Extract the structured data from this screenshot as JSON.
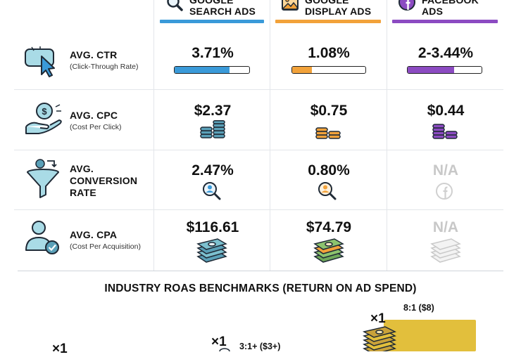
{
  "columns": [
    {
      "line1": "GOOGLE",
      "line2": "SEARCH ADS",
      "color": "#3a9ad9",
      "icon": "magnifier-icon"
    },
    {
      "line1": "GOOGLE",
      "line2": "DISPLAY ADS",
      "color": "#f2a23a",
      "icon": "image-icon"
    },
    {
      "line1": "FACEBOOK",
      "line2": "ADS",
      "color": "#8c4bc2",
      "icon": "facebook-icon"
    }
  ],
  "rows": [
    {
      "title": [
        "AVG. CTR"
      ],
      "subtitle": "(Click-Through Rate)",
      "icon": "cursor-click-icon",
      "values": [
        "3.71%",
        "1.08%",
        "2-3.44%"
      ]
    },
    {
      "title": [
        "AVG. CPC"
      ],
      "subtitle": "(Cost Per Click)",
      "icon": "hand-coin-icon",
      "values": [
        "$2.37",
        "$0.75",
        "$0.44"
      ]
    },
    {
      "title": [
        "AVG.",
        "CONVERSION",
        "RATE"
      ],
      "subtitle": "",
      "icon": "funnel-icon",
      "values": [
        "2.47%",
        "0.80%",
        "N/A"
      ]
    },
    {
      "title": [
        "AVG. CPA"
      ],
      "subtitle": "(Cost Per Acquisition)",
      "icon": "user-check-icon",
      "values": [
        "$116.61",
        "$74.79",
        "N/A"
      ]
    }
  ],
  "ctr_progress": [
    0.74,
    0.27,
    0.63
  ],
  "roas": {
    "title": "INDUSTRY ROAS BENCHMARKS (RETURN ON AD SPEND)",
    "items": [
      {
        "multiplier": "×1",
        "label": ""
      },
      {
        "multiplier": "×1",
        "label": "3:1+ ($3+)"
      },
      {
        "multiplier": "×1",
        "label": "8:1 ($8)"
      }
    ],
    "highlight_color": "#e2bf3c"
  },
  "chart_data": {
    "type": "table",
    "title": "",
    "columns": [
      "GOOGLE SEARCH ADS",
      "GOOGLE DISPLAY ADS",
      "FACEBOOK ADS"
    ],
    "rows": [
      {
        "metric": "AVG. CTR (Click-Through Rate)",
        "values": [
          "3.71%",
          "1.08%",
          "2-3.44%"
        ]
      },
      {
        "metric": "AVG. CPC (Cost Per Click)",
        "values": [
          "$2.37",
          "$0.75",
          "$0.44"
        ]
      },
      {
        "metric": "AVG. CONVERSION RATE",
        "values": [
          "2.47%",
          "0.80%",
          "N/A"
        ]
      },
      {
        "metric": "AVG. CPA (Cost Per Acquisition)",
        "values": [
          "$116.61",
          "$74.79",
          "N/A"
        ]
      }
    ]
  }
}
